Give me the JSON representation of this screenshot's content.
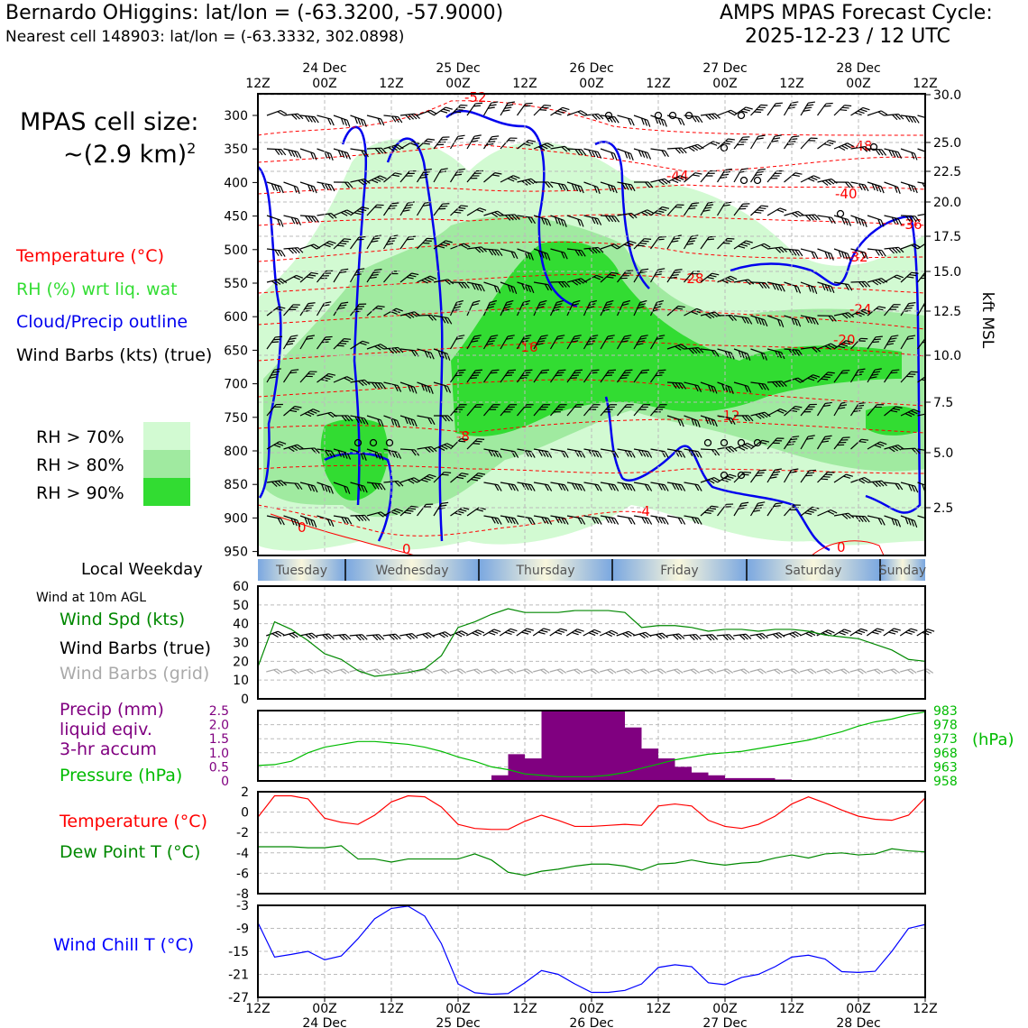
{
  "header": {
    "station": "Bernardo OHiggins: lat/lon = (-63.3200, -57.9000)",
    "nearest": "Nearest cell 148903: lat/lon = (-63.3332, 302.0898)",
    "cycle_line1": "AMPS MPAS Forecast Cycle:",
    "cycle_line2": "2025-12-23 / 12 UTC"
  },
  "cellsize": {
    "line1": "MPAS cell size:",
    "line2": "~(2.9 km)",
    "exp": "2"
  },
  "xsec_legend": {
    "temperature": "Temperature (°C)",
    "rh": "RH (%) wrt liq. wat",
    "cloud": "Cloud/Precip outline",
    "wind": "Wind Barbs (kts) (true)"
  },
  "rh_legend": [
    {
      "label": "RH > 70%",
      "color": "#d2fad2"
    },
    {
      "label": "RH > 80%",
      "color": "#a0eaa0"
    },
    {
      "label": "RH > 90%",
      "color": "#32dc32"
    }
  ],
  "colors": {
    "temp": "#ff0000",
    "rh_label": "#33dd33",
    "cloud": "#0000ee",
    "green": "#008800",
    "purple": "#800080",
    "blue": "#0000ff",
    "grey": "#aaaaaa",
    "pressure": "#00bb00"
  },
  "time_axis": {
    "ticks": [
      "12Z",
      "00Z",
      "12Z",
      "00Z",
      "12Z",
      "00Z",
      "12Z",
      "00Z",
      "12Z",
      "00Z",
      "12Z"
    ],
    "dates": [
      "24 Dec",
      "25 Dec",
      "26 Dec",
      "27 Dec",
      "28 Dec"
    ]
  },
  "weekday": {
    "label": "Local Weekday",
    "days": [
      "Tuesday",
      "Wednesday",
      "Thursday",
      "Friday",
      "Saturday",
      "Sunday"
    ]
  },
  "xsec": {
    "pressure_ticks": [
      "300",
      "350",
      "400",
      "450",
      "500",
      "550",
      "600",
      "650",
      "700",
      "750",
      "800",
      "850",
      "900",
      "950"
    ],
    "kft_ticks": [
      "30.0",
      "25.0",
      "22.5",
      "20.0",
      "17.5",
      "15.0",
      "12.5",
      "10.0",
      "7.5",
      "5.0",
      "2.5"
    ],
    "right_label": "kft MSL",
    "temp_labels": [
      "-52",
      "-48",
      "-44",
      "-40",
      "-36",
      "-32",
      "-28",
      "-24",
      "-20",
      "-16",
      "-12",
      "-8",
      "-4",
      "0",
      "0",
      "0"
    ]
  },
  "wind_panel": {
    "small_label": "Wind at 10m AGL",
    "spd_label": "Wind Spd (kts)",
    "barb_true": "Wind Barbs (true)",
    "barb_grid": "Wind Barbs (grid)",
    "yticks": [
      "60",
      "50",
      "40",
      "30",
      "20",
      "10",
      "0"
    ]
  },
  "precip_panel": {
    "label1": "Precip (mm)",
    "label2": "liquid eqiv.",
    "label3": "3-hr accum",
    "pressure_label": "Pressure (hPa)",
    "left_ticks": [
      "2.5",
      "2.0",
      "1.5",
      "1.0",
      "0.5",
      "0"
    ],
    "right_ticks": [
      "983",
      "978",
      "973",
      "968",
      "963",
      "958"
    ],
    "right_unit": "(hPa)"
  },
  "temp_panel": {
    "temp_label": "Temperature (°C)",
    "dew_label": "Dew Point T (°C)",
    "yticks": [
      "2",
      "0",
      "-2",
      "-4",
      "-6",
      "-8"
    ]
  },
  "chill_panel": {
    "label": "Wind Chill T (°C)",
    "yticks": [
      "-3",
      "-9",
      "-15",
      "-21",
      "-27"
    ]
  },
  "chart_data": [
    {
      "type": "line",
      "title": "Wind at 10m AGL",
      "ylabel": "Wind Spd (kts)",
      "ylim": [
        0,
        60
      ],
      "x_hours": [
        0,
        3,
        6,
        9,
        12,
        15,
        18,
        21,
        24,
        27,
        30,
        33,
        36,
        39,
        42,
        45,
        48,
        51,
        54,
        57,
        60,
        63,
        66,
        69,
        72,
        75,
        78,
        81,
        84,
        87,
        90,
        93,
        96,
        99,
        102,
        105,
        108,
        111,
        114,
        117,
        120
      ],
      "series": [
        {
          "name": "Wind Spd (kts)",
          "values": [
            17,
            41,
            37,
            31,
            24,
            21,
            15,
            12,
            13,
            14,
            16,
            23,
            38,
            41,
            45,
            48,
            46,
            46,
            46,
            47,
            47,
            47,
            46,
            38,
            39,
            39,
            38,
            36,
            37,
            37,
            36,
            37,
            37,
            36,
            34,
            33,
            32,
            29,
            26,
            21,
            20
          ]
        }
      ]
    },
    {
      "type": "bar",
      "title": "Precip (mm) liquid eqiv. 3-hr accum",
      "ylim": [
        0,
        2.5
      ],
      "x_hours": [
        0,
        3,
        6,
        9,
        12,
        15,
        18,
        21,
        24,
        27,
        30,
        33,
        36,
        39,
        42,
        45,
        48,
        51,
        54,
        57,
        60,
        63,
        66,
        69,
        72,
        75,
        78,
        81,
        84,
        87,
        90,
        93,
        96,
        99,
        102,
        105,
        108,
        111,
        114,
        117
      ],
      "values": [
        0,
        0,
        0,
        0,
        0,
        0,
        0,
        0,
        0,
        0,
        0,
        0,
        0,
        0.03,
        0.2,
        0.95,
        0.8,
        2.5,
        2.5,
        2.5,
        2.5,
        2.5,
        1.9,
        1.15,
        0.8,
        0.5,
        0.3,
        0.2,
        0.1,
        0.1,
        0.1,
        0.05,
        0,
        0,
        0,
        0,
        0,
        0,
        0,
        0
      ]
    },
    {
      "type": "line",
      "title": "Pressure (hPa)",
      "ylim": [
        958,
        983
      ],
      "x_hours": [
        0,
        3,
        6,
        9,
        12,
        15,
        18,
        21,
        24,
        27,
        30,
        33,
        36,
        39,
        42,
        45,
        48,
        51,
        54,
        57,
        60,
        63,
        66,
        69,
        72,
        75,
        78,
        81,
        84,
        87,
        90,
        93,
        96,
        99,
        102,
        105,
        108,
        111,
        114,
        117,
        120
      ],
      "series": [
        {
          "name": "Pressure (hPa)",
          "values": [
            963.5,
            963.8,
            965,
            968,
            970,
            971,
            972,
            972,
            971.5,
            971,
            970,
            968.5,
            966.5,
            965,
            963,
            962,
            960.5,
            960,
            959.5,
            959.5,
            959.5,
            960,
            961,
            962.5,
            964,
            965.5,
            966.5,
            967.5,
            968,
            968.5,
            969.5,
            970.5,
            971.5,
            972.5,
            974,
            975.5,
            977.5,
            979,
            980,
            981.5,
            982.5
          ]
        }
      ]
    },
    {
      "type": "line",
      "title": "Temperature / Dew Point (°C)",
      "ylim": [
        -8,
        2
      ],
      "x_hours": [
        0,
        3,
        6,
        9,
        12,
        15,
        18,
        21,
        24,
        27,
        30,
        33,
        36,
        39,
        42,
        45,
        48,
        51,
        54,
        57,
        60,
        63,
        66,
        69,
        72,
        75,
        78,
        81,
        84,
        87,
        90,
        93,
        96,
        99,
        102,
        105,
        108,
        111,
        114,
        117,
        120
      ],
      "series": [
        {
          "name": "Temperature (°C)",
          "values": [
            -0.5,
            1.6,
            1.6,
            1.3,
            -0.6,
            -1,
            -1.2,
            -0.3,
            1,
            1.6,
            1.5,
            0.5,
            -1.2,
            -1.6,
            -1.7,
            -1.7,
            -0.9,
            -0.3,
            -0.8,
            -1.4,
            -1.4,
            -1.3,
            -1.2,
            -1.3,
            0.6,
            0.8,
            0.6,
            -0.8,
            -1.4,
            -1.6,
            -1.2,
            -0.4,
            0.8,
            1.5,
            0.9,
            0.2,
            -0.4,
            -0.7,
            -0.8,
            -0.3,
            1.4
          ]
        },
        {
          "name": "Dew Point T (°C)",
          "values": [
            -3.4,
            -3.4,
            -3.4,
            -3.5,
            -3.5,
            -3.3,
            -4.6,
            -4.6,
            -4.9,
            -4.6,
            -4.6,
            -4.6,
            -4.6,
            -4.1,
            -4.7,
            -5.9,
            -6.2,
            -5.8,
            -5.6,
            -5.3,
            -5.1,
            -5.1,
            -5.3,
            -5.7,
            -5.1,
            -5,
            -4.7,
            -5,
            -5.2,
            -5,
            -4.9,
            -4.5,
            -4.2,
            -4.5,
            -4.1,
            -4.0,
            -4.2,
            -4.1,
            -3.6,
            -3.8,
            -3.9
          ]
        }
      ]
    },
    {
      "type": "line",
      "title": "Wind Chill T (°C)",
      "ylim": [
        -27,
        -3
      ],
      "x_hours": [
        0,
        3,
        6,
        9,
        12,
        15,
        18,
        21,
        24,
        27,
        30,
        33,
        36,
        39,
        42,
        45,
        48,
        51,
        54,
        57,
        60,
        63,
        66,
        69,
        72,
        75,
        78,
        81,
        84,
        87,
        90,
        93,
        96,
        99,
        102,
        105,
        108,
        111,
        114,
        117,
        120
      ],
      "series": [
        {
          "name": "Wind Chill T (°C)",
          "values": [
            -7.5,
            -16.5,
            -15.8,
            -15,
            -17.2,
            -16.2,
            -11.7,
            -6.5,
            -3.8,
            -3.2,
            -5.8,
            -13,
            -23.5,
            -25.8,
            -26.2,
            -26,
            -23.2,
            -20,
            -21,
            -23.5,
            -25.7,
            -25.7,
            -25.2,
            -23.5,
            -19.2,
            -18.5,
            -19,
            -23.2,
            -23.7,
            -21.8,
            -21,
            -19,
            -16.5,
            -16,
            -17,
            -20.3,
            -20.5,
            -20.2,
            -15,
            -9,
            -8
          ]
        }
      ]
    }
  ]
}
